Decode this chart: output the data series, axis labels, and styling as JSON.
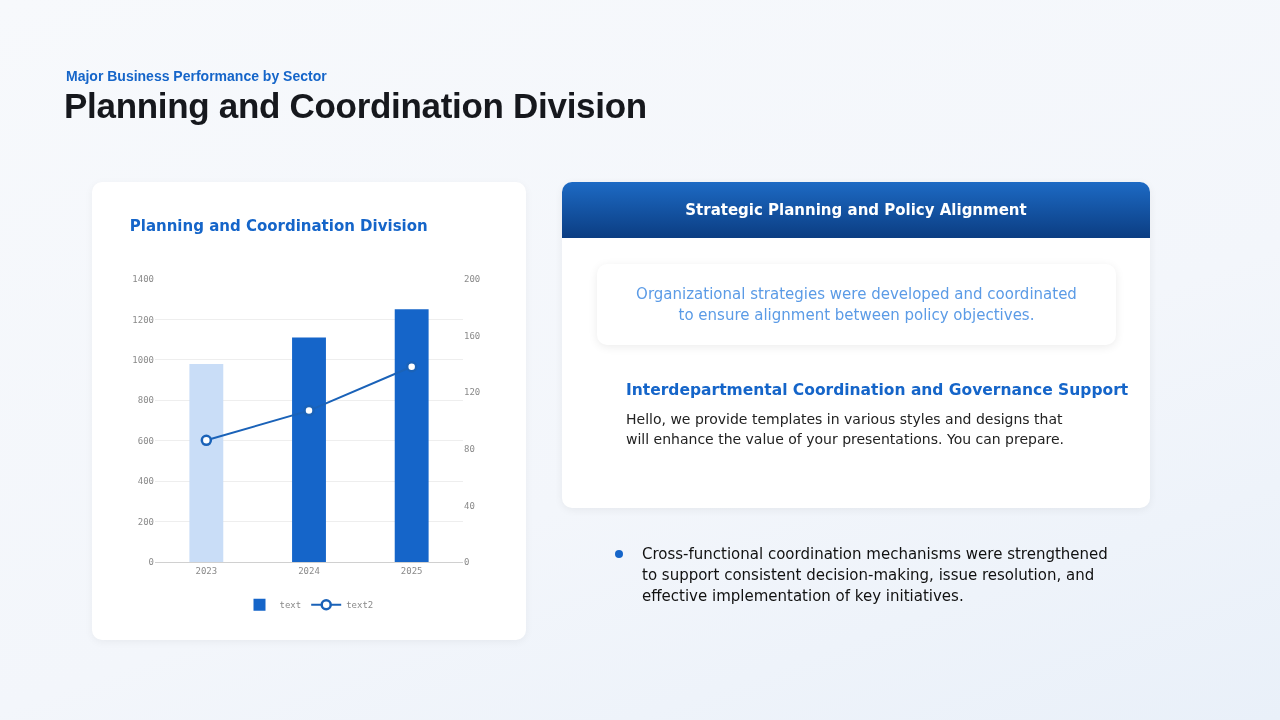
{
  "chart_data": [
    {
      "type": "other",
      "title": "Planning and Coordination Division",
      "subtitle": "Major Business Performance by Sector"
    },
    {
      "type": "bar",
      "title": "Planning and Coordination Division",
      "categories": [
        "2023",
        "2024",
        "2025"
      ],
      "series": [
        {
          "name": "text",
          "type": "bar",
          "color": "#1565c9",
          "colors": [
            "#c9ddf7",
            "#1565c9",
            "#1565c9"
          ],
          "values": [
            980,
            1110,
            1250
          ]
        },
        {
          "name": "text2",
          "type": "line",
          "axis": "y2",
          "color": "#1a62b8",
          "values": [
            86,
            107,
            138
          ]
        }
      ],
      "ylim": [
        0,
        1400
      ],
      "yticks": [
        0,
        200,
        400,
        600,
        800,
        1000,
        1200,
        1400
      ],
      "y2lim": [
        0,
        200
      ],
      "y2ticks": [
        0,
        40,
        80,
        120,
        160,
        200
      ],
      "grid": "y",
      "legend": "bottom",
      "marker": "circle",
      "line_style": "solid"
    },
    {
      "type": "other",
      "title": "Strategic Planning and Policy Alignment",
      "annotations": [
        "Organizational strategies were developed and coordinated to ensure alignment between policy objectives.",
        "Interdepartmental  Coordination and Governance Support",
        "Hello, we provide templates in various styles and designs that will enhance the value of your presentations. You can prepare.",
        "Cross-functional coordination mechanisms were strengthened to support consistent decision-making, issue resolution, and effective implementation of key initiatives."
      ]
    }
  ]
}
